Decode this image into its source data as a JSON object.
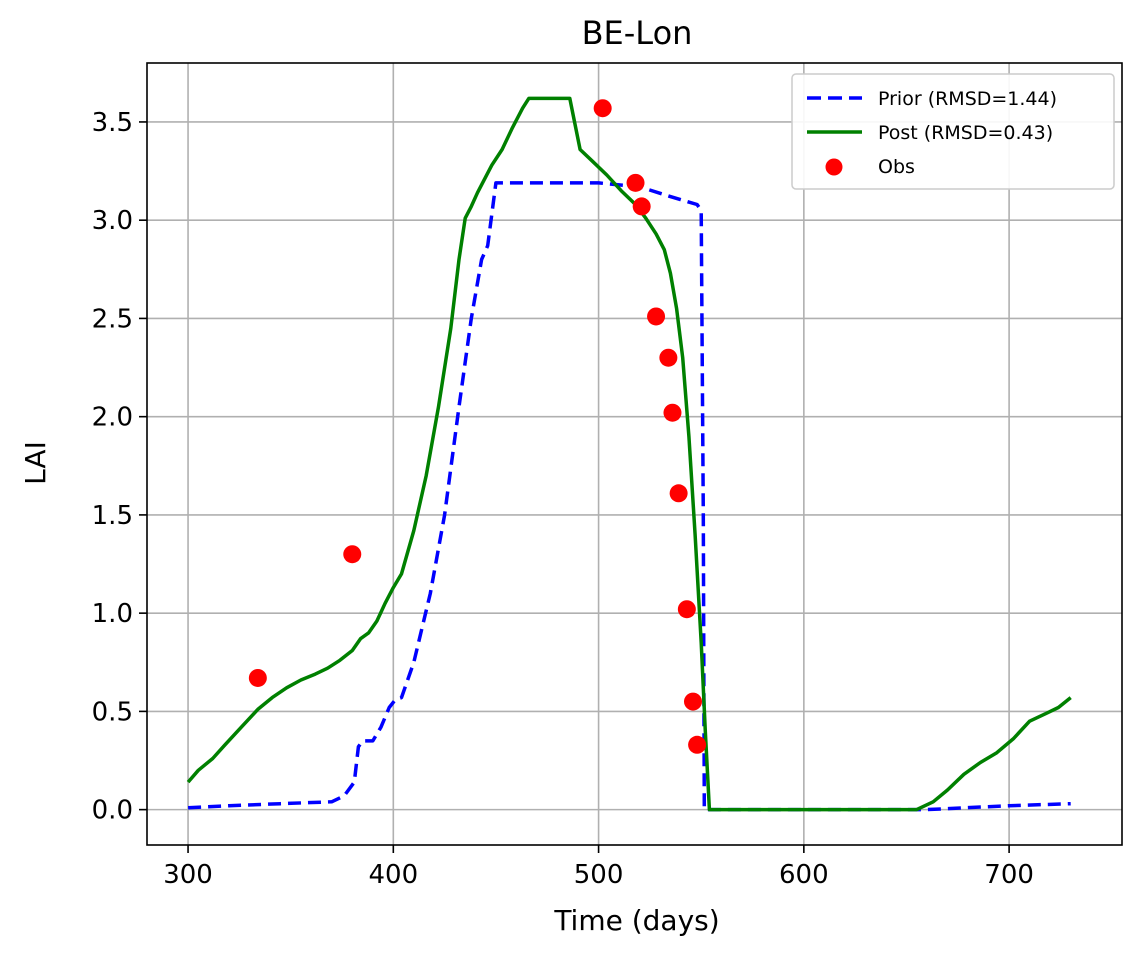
{
  "chart_data": {
    "type": "line",
    "title": "BE-Lon",
    "xlabel": "Time (days)",
    "ylabel": "LAI",
    "xlim": [
      280,
      755
    ],
    "ylim": [
      -0.18,
      3.8
    ],
    "xticks": [
      300,
      400,
      500,
      600,
      700
    ],
    "yticks": [
      0.0,
      0.5,
      1.0,
      1.5,
      2.0,
      2.5,
      3.0,
      3.5
    ],
    "xtick_labels": [
      "300",
      "400",
      "500",
      "600",
      "700"
    ],
    "ytick_labels": [
      "0.0",
      "0.5",
      "1.0",
      "1.5",
      "2.0",
      "2.5",
      "3.0",
      "3.5"
    ],
    "grid": true,
    "legend_position": "top-right",
    "series": [
      {
        "name": "Prior (RMSD=1.44)",
        "style": "dashed",
        "color": "#0000ff",
        "points": [
          [
            300,
            0.01
          ],
          [
            320,
            0.02
          ],
          [
            345,
            0.03
          ],
          [
            370,
            0.04
          ],
          [
            376,
            0.07
          ],
          [
            381,
            0.14
          ],
          [
            383,
            0.32
          ],
          [
            385,
            0.35
          ],
          [
            390,
            0.35
          ],
          [
            394,
            0.42
          ],
          [
            398,
            0.52
          ],
          [
            401,
            0.56
          ],
          [
            404,
            0.57
          ],
          [
            410,
            0.75
          ],
          [
            418,
            1.1
          ],
          [
            425,
            1.5
          ],
          [
            432,
            2.05
          ],
          [
            438,
            2.5
          ],
          [
            443,
            2.8
          ],
          [
            446,
            2.87
          ],
          [
            450,
            3.19
          ],
          [
            470,
            3.19
          ],
          [
            500,
            3.19
          ],
          [
            520,
            3.17
          ],
          [
            535,
            3.12
          ],
          [
            548,
            3.08
          ],
          [
            550,
            3.05
          ],
          [
            551,
            1.5
          ],
          [
            551.5,
            0.0
          ],
          [
            560,
            0.0
          ],
          [
            600,
            0.0
          ],
          [
            650,
            0.0
          ],
          [
            660,
            0.0
          ],
          [
            700,
            0.02
          ],
          [
            730,
            0.03
          ]
        ]
      },
      {
        "name": "Post (RMSD=0.43)",
        "style": "solid",
        "color": "#008000",
        "points": [
          [
            300,
            0.14
          ],
          [
            305,
            0.2
          ],
          [
            312,
            0.26
          ],
          [
            318,
            0.33
          ],
          [
            326,
            0.42
          ],
          [
            334,
            0.51
          ],
          [
            341,
            0.57
          ],
          [
            348,
            0.62
          ],
          [
            355,
            0.66
          ],
          [
            362,
            0.69
          ],
          [
            368,
            0.72
          ],
          [
            374,
            0.76
          ],
          [
            380,
            0.81
          ],
          [
            384,
            0.87
          ],
          [
            388,
            0.9
          ],
          [
            392,
            0.96
          ],
          [
            396,
            1.05
          ],
          [
            400,
            1.13
          ],
          [
            404,
            1.2
          ],
          [
            410,
            1.42
          ],
          [
            416,
            1.7
          ],
          [
            422,
            2.05
          ],
          [
            428,
            2.45
          ],
          [
            432,
            2.8
          ],
          [
            435,
            3.01
          ],
          [
            438,
            3.07
          ],
          [
            441,
            3.14
          ],
          [
            444,
            3.2
          ],
          [
            448,
            3.28
          ],
          [
            453,
            3.36
          ],
          [
            458,
            3.47
          ],
          [
            463,
            3.57
          ],
          [
            466,
            3.62
          ],
          [
            475,
            3.62
          ],
          [
            486,
            3.62
          ],
          [
            491,
            3.36
          ],
          [
            497,
            3.3
          ],
          [
            504,
            3.23
          ],
          [
            511,
            3.15
          ],
          [
            518,
            3.08
          ],
          [
            523,
            3.01
          ],
          [
            528,
            2.93
          ],
          [
            532,
            2.85
          ],
          [
            535,
            2.73
          ],
          [
            538,
            2.55
          ],
          [
            541,
            2.3
          ],
          [
            544,
            1.9
          ],
          [
            547,
            1.4
          ],
          [
            550,
            0.85
          ],
          [
            552,
            0.4
          ],
          [
            554,
            0.0
          ],
          [
            570,
            0.0
          ],
          [
            600,
            0.0
          ],
          [
            655,
            0.0
          ],
          [
            663,
            0.04
          ],
          [
            670,
            0.1
          ],
          [
            678,
            0.18
          ],
          [
            686,
            0.24
          ],
          [
            694,
            0.29
          ],
          [
            702,
            0.36
          ],
          [
            710,
            0.45
          ],
          [
            718,
            0.49
          ],
          [
            724,
            0.52
          ],
          [
            730,
            0.57
          ]
        ]
      },
      {
        "name": "Obs",
        "style": "scatter",
        "color": "#ff0000",
        "points": [
          [
            334,
            0.67
          ],
          [
            380,
            1.3
          ],
          [
            502,
            3.57
          ],
          [
            518,
            3.19
          ],
          [
            521,
            3.07
          ],
          [
            528,
            2.51
          ],
          [
            534,
            2.3
          ],
          [
            536,
            2.02
          ],
          [
            539,
            1.61
          ],
          [
            543,
            1.02
          ],
          [
            546,
            0.55
          ],
          [
            548,
            0.33
          ]
        ]
      }
    ]
  }
}
